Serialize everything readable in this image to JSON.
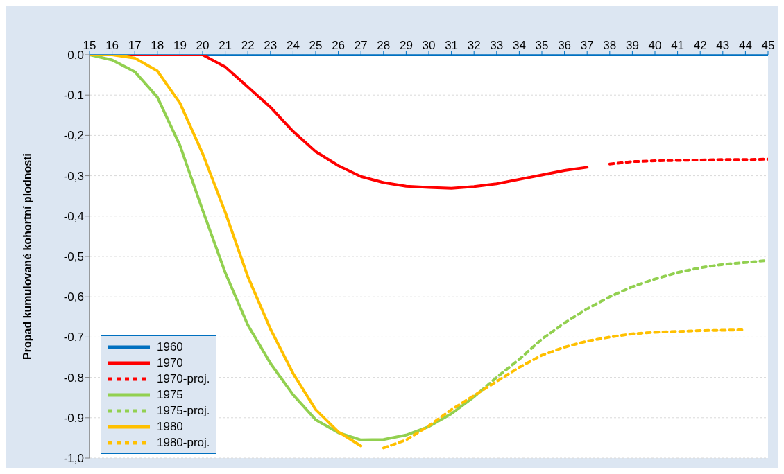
{
  "chart_data": {
    "type": "line",
    "ylabel": "Propad kumulované kohortní plodnosti",
    "xlim": [
      15,
      45
    ],
    "xticks": [
      15,
      16,
      17,
      18,
      19,
      20,
      21,
      22,
      23,
      24,
      25,
      26,
      27,
      28,
      29,
      30,
      31,
      32,
      33,
      34,
      35,
      36,
      37,
      38,
      39,
      40,
      41,
      42,
      43,
      44,
      45
    ],
    "ylim": [
      -1,
      0
    ],
    "yticks": [
      {
        "value": 0,
        "label": "0,0"
      },
      {
        "value": -0.1,
        "label": "-0,1"
      },
      {
        "value": -0.2,
        "label": "-0,2"
      },
      {
        "value": -0.3,
        "label": "-0,3"
      },
      {
        "value": -0.4,
        "label": "-0,4"
      },
      {
        "value": -0.5,
        "label": "-0,5"
      },
      {
        "value": -0.6,
        "label": "-0,6"
      },
      {
        "value": -0.7,
        "label": "-0,7"
      },
      {
        "value": -0.8,
        "label": "-0,8"
      },
      {
        "value": -0.9,
        "label": "-0,9"
      },
      {
        "value": -1,
        "label": "-1,0"
      }
    ],
    "grid": "y",
    "legend": "bottom left",
    "marker": "none",
    "series": [
      {
        "name": "1960",
        "color": "#0070c0",
        "line_style": "solid",
        "x": [
          15,
          16,
          17,
          18,
          19,
          20,
          21,
          22,
          23,
          24,
          25,
          26,
          27,
          28,
          29,
          30,
          31,
          32,
          33,
          34,
          35,
          36,
          37,
          38,
          39,
          40,
          41,
          42,
          43,
          44,
          45
        ],
        "values": [
          0,
          0,
          0,
          0,
          0,
          0,
          0,
          0,
          0,
          0,
          0,
          0,
          0,
          0,
          0,
          0,
          0,
          0,
          0,
          0,
          0,
          0,
          0,
          0,
          0,
          0,
          0,
          0,
          0,
          0,
          0
        ]
      },
      {
        "name": "1970",
        "color": "#ff0000",
        "line_style": "solid",
        "x": [
          15,
          16,
          17,
          18,
          19,
          20,
          21,
          22,
          23,
          24,
          25,
          26,
          27,
          28,
          29,
          30,
          31,
          32,
          33,
          34,
          35,
          36,
          37
        ],
        "values": [
          0,
          0,
          0,
          0,
          0,
          0,
          -0.03,
          -0.08,
          -0.13,
          -0.19,
          -0.24,
          -0.275,
          -0.302,
          -0.317,
          -0.326,
          -0.329,
          -0.331,
          -0.327,
          -0.32,
          -0.309,
          -0.298,
          -0.287,
          -0.279
        ]
      },
      {
        "name": "1970-proj.",
        "color": "#ff0000",
        "line_style": "dashed",
        "x": [
          38,
          39,
          40,
          41,
          42,
          43,
          44,
          45
        ],
        "values": [
          -0.271,
          -0.265,
          -0.263,
          -0.262,
          -0.261,
          -0.26,
          -0.26,
          -0.259
        ]
      },
      {
        "name": "1975",
        "color": "#92d050",
        "line_style": "solid",
        "x": [
          15,
          16,
          17,
          18,
          19,
          20,
          21,
          22,
          23,
          24,
          25,
          26,
          27,
          28,
          29,
          30,
          31,
          32
        ],
        "values": [
          0,
          -0.013,
          -0.042,
          -0.105,
          -0.225,
          -0.385,
          -0.54,
          -0.67,
          -0.765,
          -0.843,
          -0.905,
          -0.937,
          -0.955,
          -0.954,
          -0.943,
          -0.922,
          -0.89,
          -0.848
        ]
      },
      {
        "name": "1975-proj.",
        "color": "#92d050",
        "line_style": "dashed",
        "x": [
          32,
          33,
          34,
          35,
          36,
          37,
          38,
          39,
          40,
          41,
          42,
          43,
          44,
          45
        ],
        "values": [
          -0.848,
          -0.8,
          -0.755,
          -0.705,
          -0.665,
          -0.63,
          -0.6,
          -0.575,
          -0.556,
          -0.54,
          -0.528,
          -0.52,
          -0.515,
          -0.51
        ]
      },
      {
        "name": "1980",
        "color": "#ffc000",
        "line_style": "solid",
        "x": [
          15,
          16,
          17,
          18,
          19,
          20,
          21,
          22,
          23,
          24,
          25,
          26,
          27
        ],
        "values": [
          0,
          0,
          -0.008,
          -0.04,
          -0.12,
          -0.245,
          -0.39,
          -0.55,
          -0.68,
          -0.79,
          -0.88,
          -0.935,
          -0.97
        ]
      },
      {
        "name": "1980-proj.",
        "color": "#ffc000",
        "line_style": "dashed",
        "x": [
          28,
          29,
          30,
          31,
          32,
          33,
          34,
          35,
          36,
          37,
          38,
          39,
          40,
          41,
          42,
          43,
          44
        ],
        "values": [
          -0.975,
          -0.955,
          -0.92,
          -0.88,
          -0.845,
          -0.81,
          -0.775,
          -0.745,
          -0.725,
          -0.71,
          -0.7,
          -0.692,
          -0.688,
          -0.686,
          -0.684,
          -0.683,
          -0.682
        ]
      }
    ]
  }
}
